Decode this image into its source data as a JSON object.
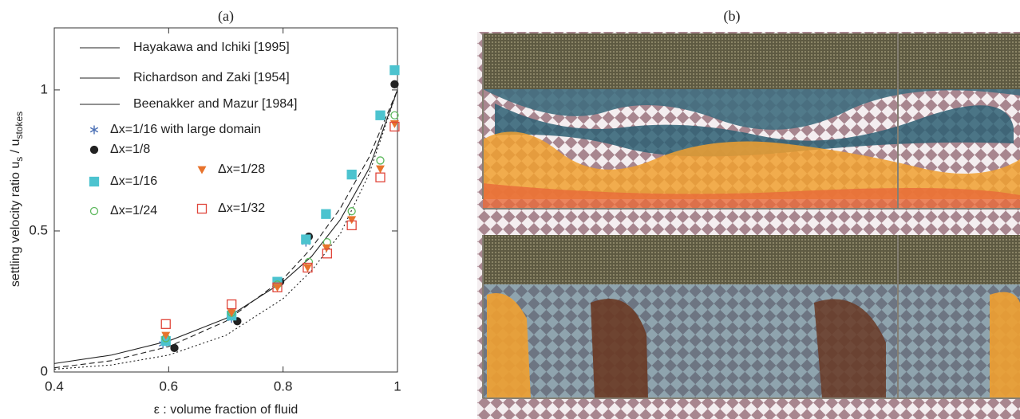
{
  "chart_data": [
    {
      "type": "scatter",
      "title": "(a)",
      "xlabel": "ε  : volume fraction of fluid",
      "ylabel": {
        "main": "settling velocity ratio u",
        "sub1": "s",
        "mid": " / u",
        "sub2": "stokes"
      },
      "xlim": [
        0.4,
        1.0
      ],
      "ylim": [
        0,
        1.22
      ],
      "xticks": [
        0.4,
        0.6,
        0.8,
        1
      ],
      "yticks": [
        0,
        0.5,
        1
      ],
      "series": [
        {
          "name": "Hayakawa and Ichiki [1995]",
          "kind": "line",
          "dash": "solid",
          "color": "#222222",
          "x": [
            0.4,
            0.5,
            0.6,
            0.7,
            0.8,
            0.85,
            0.9,
            0.95,
            1.0
          ],
          "values": [
            0.03,
            0.06,
            0.11,
            0.19,
            0.32,
            0.41,
            0.54,
            0.72,
            1.0
          ]
        },
        {
          "name": "Richardson and Zaki [1954]",
          "kind": "line",
          "dash": "dashed",
          "color": "#222222",
          "x": [
            0.4,
            0.5,
            0.6,
            0.7,
            0.8,
            0.85,
            0.9,
            0.95,
            1.0
          ],
          "values": [
            0.015,
            0.04,
            0.09,
            0.18,
            0.33,
            0.44,
            0.58,
            0.76,
            1.0
          ]
        },
        {
          "name": "Beenakker and Mazur [1984]",
          "kind": "line",
          "dash": "dotted",
          "color": "#222222",
          "x": [
            0.4,
            0.5,
            0.6,
            0.7,
            0.8,
            0.85,
            0.9,
            0.95,
            1.0
          ],
          "values": [
            0.01,
            0.025,
            0.06,
            0.13,
            0.26,
            0.36,
            0.49,
            0.7,
            1.0
          ]
        },
        {
          "name": "Δx=1/16 with large domain",
          "kind": "star",
          "color": "#4a6fb5",
          "x": [
            0.59,
            0.71,
            0.79,
            0.84,
            0.875,
            0.92,
            0.97,
            0.995
          ],
          "values": [
            0.1,
            0.19,
            0.32,
            0.46,
            0.56,
            0.7,
            0.91,
            1.07
          ]
        },
        {
          "name": "Δx=1/8",
          "kind": "circle",
          "color": "#222222",
          "x": [
            0.61,
            0.72,
            0.795,
            0.845,
            0.995
          ],
          "values": [
            0.085,
            0.18,
            0.32,
            0.48,
            1.02
          ]
        },
        {
          "name": "Δx=1/16",
          "kind": "square",
          "color": "#4cc3cf",
          "x": [
            0.595,
            0.71,
            0.79,
            0.84,
            0.875,
            0.92,
            0.97,
            0.995
          ],
          "values": [
            0.11,
            0.2,
            0.32,
            0.47,
            0.56,
            0.7,
            0.91,
            1.07
          ]
        },
        {
          "name": "Δx=1/24",
          "kind": "open-circle",
          "color": "#5cb85c",
          "x": [
            0.595,
            0.71,
            0.79,
            0.845,
            0.877,
            0.92,
            0.97,
            0.995
          ],
          "values": [
            0.12,
            0.21,
            0.31,
            0.39,
            0.46,
            0.57,
            0.75,
            0.91
          ]
        },
        {
          "name": "Δx=1/28",
          "kind": "triangle",
          "color": "#e8732c",
          "x": [
            0.595,
            0.71,
            0.79,
            0.843,
            0.876,
            0.92,
            0.97,
            0.995
          ],
          "values": [
            0.13,
            0.21,
            0.3,
            0.37,
            0.44,
            0.54,
            0.72,
            0.88
          ]
        },
        {
          "name": "Δx=1/32",
          "kind": "open-square",
          "color": "#e0453a",
          "x": [
            0.595,
            0.71,
            0.79,
            0.843,
            0.877,
            0.92,
            0.97,
            0.995
          ],
          "values": [
            0.17,
            0.24,
            0.3,
            0.37,
            0.42,
            0.52,
            0.69,
            0.87
          ]
        }
      ]
    },
    {
      "type": "image",
      "title": "(b)"
    }
  ]
}
